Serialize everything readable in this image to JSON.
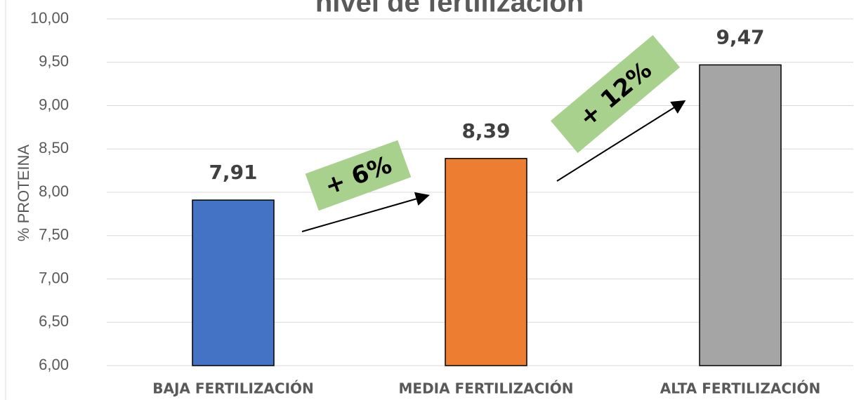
{
  "chart_data": {
    "type": "bar",
    "title": "nivel de fertilización",
    "y_label": "% PROTEINA",
    "categories": [
      "BAJA FERTILIZACIÓN",
      "MEDIA FERTILIZACIÓN",
      "ALTA FERTILIZACIÓN"
    ],
    "values": [
      7.91,
      8.39,
      9.47
    ],
    "value_labels": [
      "7,91",
      "8,39",
      "9,47"
    ],
    "colors": [
      "#4472c4",
      "#ed7d31",
      "#a5a5a5"
    ],
    "ylim": [
      6,
      10
    ],
    "yticks": [
      {
        "value": 6,
        "label": "6,00"
      },
      {
        "value": 6.5,
        "label": "6,50"
      },
      {
        "value": 7,
        "label": "7,00"
      },
      {
        "value": 7.5,
        "label": "7,50"
      },
      {
        "value": 8,
        "label": "8,00"
      },
      {
        "value": 8.5,
        "label": "8,50"
      },
      {
        "value": 9,
        "label": "9,00"
      },
      {
        "value": 9.5,
        "label": "9,50"
      },
      {
        "value": 10,
        "label": "10,00"
      }
    ],
    "grid": true,
    "annotations": [
      "+ 6%",
      "+ 12%"
    ]
  }
}
